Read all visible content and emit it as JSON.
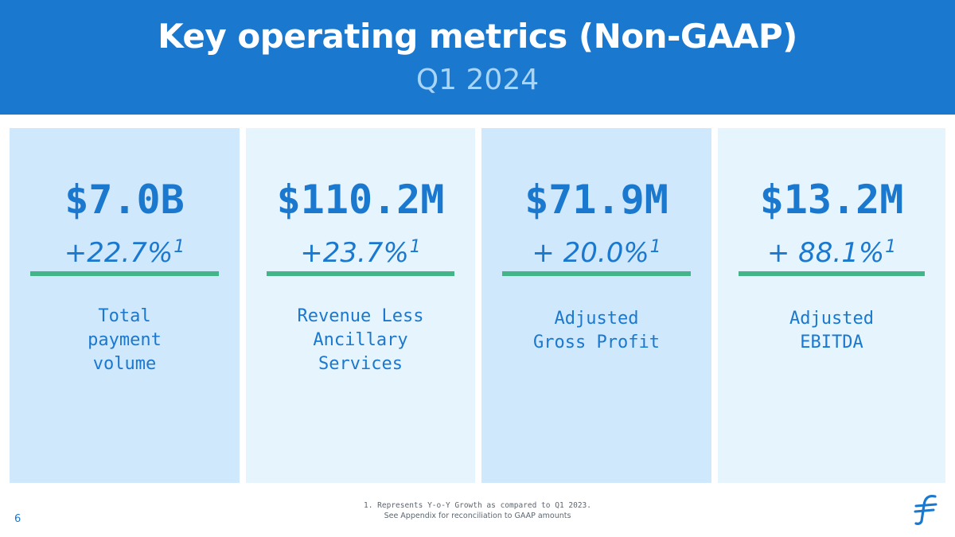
{
  "header": {
    "title": "Key operating metrics (Non-GAAP)",
    "subtitle": "Q1 2024"
  },
  "metrics": [
    {
      "value": "$7.0B",
      "growth": "+22.7%",
      "footnote_ref": "1",
      "label_lines": [
        "Total",
        "payment",
        "volume"
      ]
    },
    {
      "value": "$110.2M",
      "growth": "+23.7%",
      "footnote_ref": "1",
      "label_lines": [
        "Revenue Less",
        "Ancillary",
        "Services"
      ]
    },
    {
      "value": "$71.9M",
      "growth": "+ 20.0%",
      "footnote_ref": "1",
      "label_lines": [
        "Adjusted",
        "Gross Profit"
      ]
    },
    {
      "value": "$13.2M",
      "growth": "+ 88.1%",
      "footnote_ref": "1",
      "label_lines": [
        "Adjusted",
        "EBITDA"
      ]
    }
  ],
  "footnotes": {
    "note1": "1. Represents Y-o-Y Growth as compared to Q1 2023.",
    "note2": "See Appendix for reconciliation to GAAP amounts"
  },
  "page_number": "6",
  "logo": {
    "icon": "flywire-logo-icon"
  },
  "colors": {
    "header_bg": "#1a78cf",
    "accent_blue": "#1a78cf",
    "accent_green": "#44b489",
    "card_dark": "#cfe8fc",
    "card_light": "#e5f4fd"
  }
}
